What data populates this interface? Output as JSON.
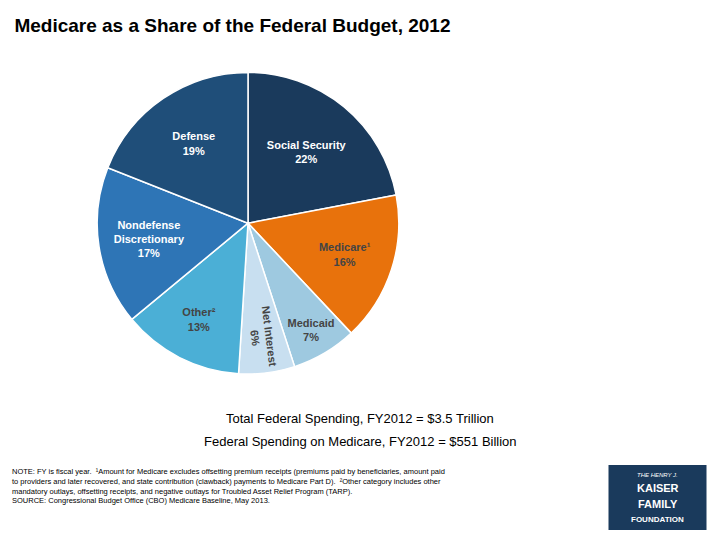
{
  "chart_data": {
    "type": "pie",
    "title": "Medicare as a Share of the Federal Budget, 2012",
    "categories": [
      "Social Security",
      "Medicare¹",
      "Medicaid",
      "Net Interest",
      "Other²",
      "Nondefense\nDiscretionary",
      "Defense"
    ],
    "values": [
      22,
      16,
      7,
      6,
      13,
      17,
      19
    ],
    "colors": [
      "#1a3a5c",
      "#e8720c",
      "#9ec9e0",
      "#c8dff0",
      "#4bafd6",
      "#2e75b6",
      "#1f4e79"
    ],
    "data_labels": true,
    "value_labels": [
      "Social Security\n22%",
      "Medicare¹\n16%",
      "Medicaid\n7%",
      "Net Interest\n6%",
      "Other²\n13%",
      "Nondefense\nDiscretionary\n17%",
      "Defense\n19%"
    ],
    "annotations": [
      "Total Federal Spending, FY2012 = $3.5 Trillion",
      "Federal Spending on Medicare, FY2012 = $551 Billion",
      "NOTE: FY is fiscal year.  ¹Amount for Medicare excludes offsetting premium receipts (premiums paid by beneficiaries, amount paid\nto providers and later recovered, and state contribution (clawback) payments to Medicare Part D).  ²Other category includes other\nmandatory outlays, offsetting receipts, and negative outlays for Troubled Asset Relief Program (TARP).\nSOURCE: Congressional Budget Office (CBO) Medicare Baseline, May 2013.",
      "THE HENRY J.",
      "KAISER",
      "FAMILY",
      "FOUNDATION"
    ]
  }
}
